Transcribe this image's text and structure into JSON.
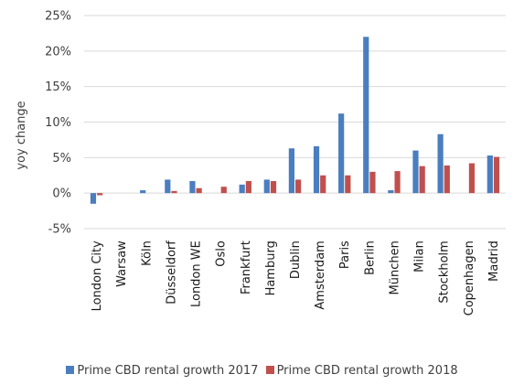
{
  "chart_data": {
    "type": "bar",
    "categories": [
      "London City",
      "Warsaw",
      "Köln",
      "Düsseldorf",
      "London WE",
      "Oslo",
      "Frankfurt",
      "Hamburg",
      "Dublin",
      "Amsterdam",
      "Paris",
      "Berlin",
      "München",
      "Milan",
      "Stockholm",
      "Copenhagen",
      "Madrid"
    ],
    "series": [
      {
        "name": "Prime CBD rental growth 2017",
        "color": "#4a7ebf",
        "values": [
          -1.5,
          0.0,
          0.4,
          1.9,
          1.7,
          0.0,
          1.2,
          1.9,
          6.3,
          6.6,
          11.2,
          22.0,
          0.4,
          6.0,
          8.3,
          0.0,
          5.3
        ]
      },
      {
        "name": "Prime CBD rental growth 2018",
        "color": "#c0504d",
        "values": [
          -0.3,
          0.0,
          0.0,
          0.3,
          0.7,
          0.9,
          1.7,
          1.7,
          1.9,
          2.5,
          2.5,
          3.0,
          3.1,
          3.8,
          3.9,
          4.2,
          5.1
        ]
      }
    ],
    "ylabel": "yoy change",
    "ylim": [
      -5,
      25
    ],
    "yticks": [
      "-5%",
      "0%",
      "5%",
      "10%",
      "15%",
      "20%",
      "25%"
    ],
    "ytick_values": [
      -5,
      0,
      5,
      10,
      15,
      20,
      25
    ],
    "grid": true,
    "legend_position": "bottom"
  }
}
